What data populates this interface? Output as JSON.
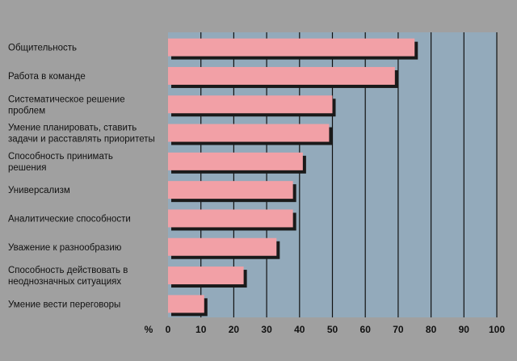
{
  "chart_data": {
    "type": "bar",
    "orientation": "horizontal",
    "categories": [
      [
        "Общительность"
      ],
      [
        "Работа в команде"
      ],
      [
        "Систематическое решение",
        "проблем"
      ],
      [
        "Умение планировать, ставить",
        "задачи и расставлять приоритеты"
      ],
      [
        "Способность принимать",
        "решения"
      ],
      [
        "Универсализм"
      ],
      [
        "Аналитические способности"
      ],
      [
        "Уважение к разнообразию"
      ],
      [
        "Способность действовать в",
        "неоднозначных ситуациях"
      ],
      [
        "Умение вести переговоры"
      ]
    ],
    "values": [
      75,
      69,
      50,
      49,
      41,
      38,
      38,
      33,
      23,
      11
    ],
    "xlim": [
      0,
      100
    ],
    "xticks": [
      0,
      10,
      20,
      30,
      40,
      50,
      60,
      70,
      80,
      90,
      100
    ],
    "xlabel": "%",
    "grid": true,
    "colors": {
      "page_background": "#a0a0a0",
      "plot_background": "#93aabb",
      "bar_fill": "#f2a0a6",
      "bar_shadow": "#1a1a1a",
      "gridline": "#111111"
    }
  }
}
